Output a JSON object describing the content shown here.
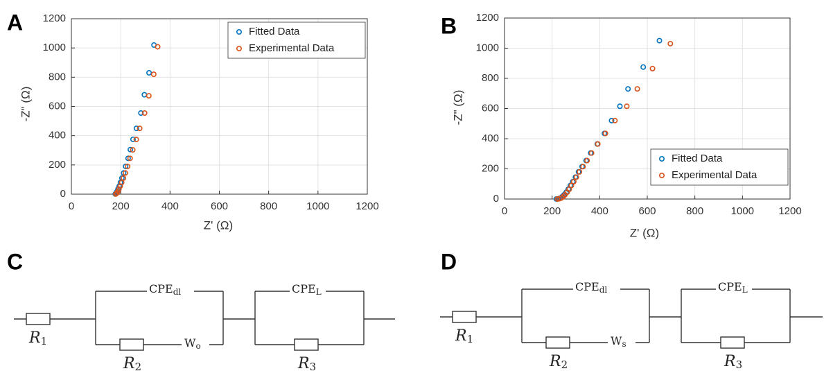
{
  "panels": [
    "A",
    "B",
    "C",
    "D"
  ],
  "chart_data": [
    {
      "type": "scatter",
      "xlabel": "Z' (Ω)",
      "ylabel": "-Z\" (Ω)",
      "xlim": [
        0,
        1200
      ],
      "ylim": [
        0,
        1200
      ],
      "xticks": [
        0,
        200,
        400,
        600,
        800,
        1000,
        1200
      ],
      "yticks": [
        0,
        200,
        400,
        600,
        800,
        1000,
        1200
      ],
      "grid": true,
      "legend": "northeast",
      "series": [
        {
          "name": "Fitted Data",
          "color": "#0072bd",
          "x": [
            335,
            315,
            296,
            282,
            264,
            250,
            239,
            230,
            220,
            212,
            205,
            199,
            194,
            189,
            185,
            181,
            178
          ],
          "values": [
            1020,
            830,
            680,
            555,
            450,
            375,
            305,
            245,
            190,
            145,
            110,
            80,
            55,
            35,
            18,
            7,
            1
          ]
        },
        {
          "name": "Experimental Data",
          "color": "#d95319",
          "x": [
            350,
            334,
            314,
            297,
            277,
            263,
            249,
            238,
            228,
            219,
            211,
            204,
            198,
            193,
            188,
            184,
            180
          ],
          "values": [
            1008,
            820,
            673,
            555,
            450,
            374,
            303,
            245,
            190,
            145,
            110,
            80,
            55,
            35,
            18,
            7,
            1
          ]
        }
      ]
    },
    {
      "type": "scatter",
      "xlabel": "Z' (Ω)",
      "ylabel": "-Z\" (Ω)",
      "xlim": [
        0,
        1200
      ],
      "ylim": [
        0,
        1200
      ],
      "xticks": [
        0,
        200,
        400,
        600,
        800,
        1000,
        1200
      ],
      "yticks": [
        0,
        200,
        400,
        600,
        800,
        1000,
        1200
      ],
      "grid": true,
      "legend": "southeast",
      "series": [
        {
          "name": "Fitted Data",
          "color": "#0072bd",
          "x": [
            651,
            583,
            519,
            485,
            450,
            420,
            390,
            362,
            343,
            326,
            311,
            298,
            287,
            277,
            268,
            259,
            250,
            242,
            234,
            226,
            218
          ],
          "values": [
            1050,
            875,
            730,
            615,
            520,
            435,
            365,
            305,
            255,
            215,
            180,
            145,
            115,
            90,
            65,
            45,
            28,
            15,
            6,
            2,
            0
          ]
        },
        {
          "name": "Experimental Data",
          "color": "#d95319",
          "x": [
            697,
            622,
            558,
            514,
            464,
            424,
            392,
            366,
            347,
            330,
            315,
            302,
            291,
            281,
            272,
            263,
            254,
            246,
            238,
            230,
            222
          ],
          "values": [
            1030,
            865,
            730,
            615,
            520,
            435,
            365,
            305,
            255,
            215,
            180,
            145,
            115,
            90,
            65,
            45,
            28,
            15,
            6,
            2,
            0
          ]
        }
      ]
    }
  ],
  "circuits": [
    {
      "r1": {
        "main": "R",
        "sub": "1"
      },
      "r2": {
        "main": "R",
        "sub": "2"
      },
      "r3": {
        "main": "R",
        "sub": "3"
      },
      "cpe1": {
        "main": "CPE",
        "sub": "dl"
      },
      "cpe2": {
        "main": "CPE",
        "sub": "L"
      },
      "w": {
        "main": "W",
        "sub": "o"
      }
    },
    {
      "r1": {
        "main": "R",
        "sub": "1"
      },
      "r2": {
        "main": "R",
        "sub": "2"
      },
      "r3": {
        "main": "R",
        "sub": "3"
      },
      "cpe1": {
        "main": "CPE",
        "sub": "dl"
      },
      "cpe2": {
        "main": "CPE",
        "sub": "L"
      },
      "w": {
        "main": "W",
        "sub": "s"
      }
    }
  ]
}
